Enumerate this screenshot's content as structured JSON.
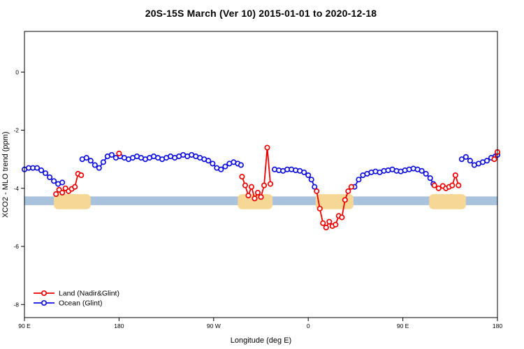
{
  "chart_data": {
    "type": "line",
    "title": "20S-15S March (Ver 10)   2015-01-01 to 2020-12-18",
    "xlabel": "Longitude (deg E)",
    "ylabel": "XCO2 - MLO trend (ppm)",
    "xlim": [
      90,
      540
    ],
    "ylim": [
      1.4,
      -8.45
    ],
    "grid": false,
    "legend_position": "bottom-left",
    "x_ticks": [
      {
        "lon": 90,
        "label": "90 E"
      },
      {
        "lon": 180,
        "label": "180"
      },
      {
        "lon": 270,
        "label": "90 W"
      },
      {
        "lon": 360,
        "label": "0"
      },
      {
        "lon": 450,
        "label": "90 E"
      },
      {
        "lon": 540,
        "label": "180"
      }
    ],
    "y_ticks": [
      0,
      -2,
      -4,
      -6,
      -8
    ],
    "ocean_band": {
      "y0": -4.28,
      "y1": -4.58,
      "color": "#a9c3de"
    },
    "land_bands": {
      "y0": -4.2,
      "y1": -4.72,
      "color": "#f6d795",
      "ranges": [
        [
          118,
          153
        ],
        [
          293,
          326
        ],
        [
          367,
          403
        ],
        [
          475,
          510
        ]
      ]
    },
    "series": [
      {
        "id": "ocean",
        "name": "Ocean (Glint)",
        "color": "#1010dd",
        "segments": [
          [
            [
              90,
              -3.35
            ],
            [
              94,
              -3.3
            ],
            [
              98,
              -3.3
            ],
            [
              102,
              -3.3
            ],
            [
              106,
              -3.38
            ],
            [
              110,
              -3.48
            ],
            [
              114,
              -3.62
            ],
            [
              118,
              -3.75
            ],
            [
              122,
              -3.85
            ],
            [
              126,
              -3.8
            ]
          ],
          [
            [
              145,
              -3.0
            ],
            [
              149,
              -2.95
            ],
            [
              153,
              -3.05
            ],
            [
              157,
              -3.2
            ],
            [
              161,
              -3.3
            ],
            [
              165,
              -3.1
            ],
            [
              169,
              -2.9
            ],
            [
              173,
              -2.85
            ],
            [
              177,
              -2.95
            ],
            [
              181,
              -2.9
            ],
            [
              185,
              -2.95
            ],
            [
              189,
              -3.0
            ],
            [
              193,
              -2.95
            ],
            [
              197,
              -2.9
            ],
            [
              201,
              -2.95
            ],
            [
              205,
              -3.0
            ],
            [
              209,
              -2.95
            ],
            [
              213,
              -2.9
            ],
            [
              217,
              -2.95
            ],
            [
              221,
              -3.0
            ],
            [
              225,
              -2.95
            ],
            [
              229,
              -2.9
            ],
            [
              233,
              -2.95
            ],
            [
              237,
              -2.9
            ],
            [
              241,
              -2.85
            ],
            [
              245,
              -2.9
            ],
            [
              249,
              -2.85
            ],
            [
              253,
              -2.9
            ],
            [
              257,
              -2.95
            ],
            [
              261,
              -3.0
            ],
            [
              265,
              -3.05
            ],
            [
              269,
              -3.15
            ],
            [
              273,
              -3.3
            ],
            [
              277,
              -3.35
            ],
            [
              281,
              -3.25
            ],
            [
              285,
              -3.15
            ],
            [
              289,
              -3.1
            ],
            [
              293,
              -3.15
            ],
            [
              296,
              -3.2
            ]
          ],
          [
            [
              328,
              -3.35
            ],
            [
              332,
              -3.38
            ],
            [
              336,
              -3.4
            ],
            [
              340,
              -3.35
            ],
            [
              344,
              -3.35
            ],
            [
              348,
              -3.38
            ],
            [
              352,
              -3.4
            ],
            [
              356,
              -3.45
            ],
            [
              360,
              -3.55
            ],
            [
              363,
              -3.7
            ],
            [
              366,
              -3.95
            ]
          ],
          [
            [
              404,
              -3.95
            ],
            [
              408,
              -3.7
            ],
            [
              412,
              -3.55
            ],
            [
              416,
              -3.5
            ],
            [
              420,
              -3.45
            ],
            [
              424,
              -3.42
            ],
            [
              428,
              -3.45
            ],
            [
              432,
              -3.4
            ],
            [
              436,
              -3.38
            ],
            [
              440,
              -3.35
            ],
            [
              444,
              -3.4
            ],
            [
              448,
              -3.42
            ],
            [
              452,
              -3.38
            ],
            [
              456,
              -3.35
            ],
            [
              460,
              -3.32
            ],
            [
              464,
              -3.35
            ],
            [
              468,
              -3.4
            ],
            [
              472,
              -3.5
            ],
            [
              476,
              -3.65
            ],
            [
              479,
              -3.85
            ]
          ],
          [
            [
              506,
              -3.0
            ],
            [
              510,
              -2.92
            ],
            [
              514,
              -3.05
            ],
            [
              518,
              -3.2
            ],
            [
              522,
              -3.15
            ],
            [
              526,
              -3.1
            ],
            [
              530,
              -3.05
            ],
            [
              534,
              -2.95
            ],
            [
              538,
              -2.9
            ],
            [
              540,
              -2.85
            ]
          ]
        ]
      },
      {
        "id": "land",
        "name": "Land (Nadir&Glint)",
        "color": "#ee0000",
        "segments": [
          [
            [
              120,
              -4.2
            ],
            [
              123,
              -4.05
            ],
            [
              126,
              -4.15
            ],
            [
              129,
              -4.0
            ],
            [
              132,
              -4.1
            ],
            [
              135,
              -4.02
            ],
            [
              138,
              -3.95
            ],
            [
              141,
              -3.5
            ],
            [
              144,
              -3.55
            ]
          ],
          [
            [
              180,
              -2.8
            ]
          ],
          [
            [
              297,
              -3.6
            ],
            [
              300,
              -3.9
            ],
            [
              303,
              -4.25
            ],
            [
              306,
              -3.95
            ],
            [
              309,
              -4.35
            ],
            [
              312,
              -4.15
            ],
            [
              315,
              -4.3
            ],
            [
              318,
              -3.9
            ],
            [
              321,
              -2.6
            ],
            [
              324,
              -3.85
            ]
          ],
          [
            [
              368,
              -4.1
            ],
            [
              371,
              -4.7
            ],
            [
              374,
              -5.2
            ],
            [
              377,
              -5.35
            ],
            [
              380,
              -5.15
            ],
            [
              383,
              -5.3
            ],
            [
              386,
              -5.25
            ],
            [
              389,
              -4.95
            ],
            [
              392,
              -5.0
            ],
            [
              395,
              -4.4
            ],
            [
              398,
              -4.1
            ],
            [
              401,
              -3.95
            ]
          ],
          [
            [
              480,
              -3.9
            ],
            [
              484,
              -4.0
            ],
            [
              488,
              -3.92
            ],
            [
              491,
              -4.0
            ],
            [
              494,
              -3.95
            ],
            [
              497,
              -3.9
            ],
            [
              500,
              -3.55
            ],
            [
              503,
              -3.9
            ]
          ],
          [
            [
              537,
              -3.0
            ],
            [
              540,
              -2.75
            ]
          ]
        ]
      }
    ],
    "legend": [
      "Land (Nadir&Glint)",
      "Ocean (Glint)"
    ]
  }
}
